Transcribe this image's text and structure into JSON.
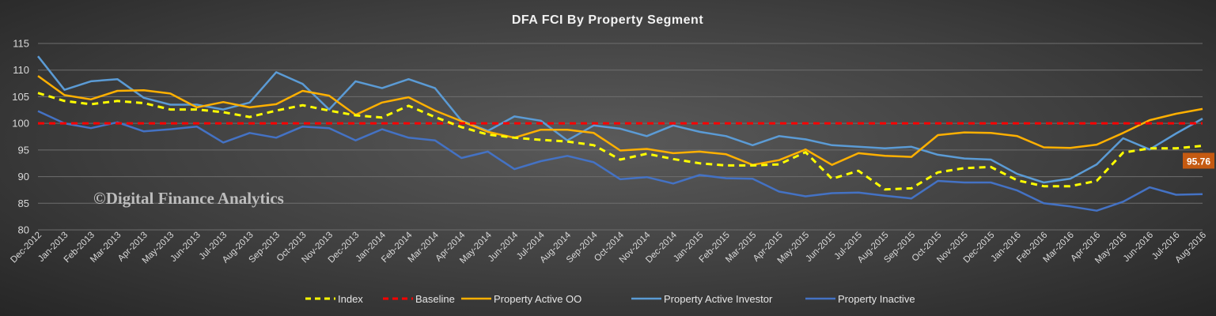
{
  "chart_data": {
    "type": "line",
    "title": "DFA FCI By Property  Segment",
    "watermark": "©Digital Finance Analytics",
    "ylim": [
      80,
      115
    ],
    "yticks": [
      "80",
      "85",
      "90",
      "95",
      "100",
      "105",
      "110",
      "115"
    ],
    "grid": true,
    "legend_position": "bottom",
    "categories": [
      "Dec-2012",
      "Jan-2013",
      "Feb-2013",
      "Mar-2013",
      "Apr-2013",
      "May-2013",
      "Jun-2013",
      "Jul-2013",
      "Aug-2013",
      "Sep-2013",
      "Oct-2013",
      "Nov-2013",
      "Dec-2013",
      "Jan-2014",
      "Feb-2014",
      "Mar-2014",
      "Apr-2014",
      "May-2014",
      "Jun-2014",
      "Jul-2014",
      "Aug-2014",
      "Sep-2014",
      "Oct-2014",
      "Nov-2014",
      "Dec-2014",
      "Jan-2015",
      "Feb-2015",
      "Mar-2015",
      "Apr-2015",
      "May-2015",
      "Jun-2015",
      "Jul-2015",
      "Aug-2015",
      "Sep-2015",
      "Oct-2015",
      "Nov-2015",
      "Dec-2015",
      "Jan-2016",
      "Feb-2016",
      "Mar-2016",
      "Apr-2016",
      "May-2016",
      "Jun-2016",
      "Jul-2016",
      "Aug-2016"
    ],
    "series": [
      {
        "name": "Index",
        "color": "#ffff00",
        "dash": "dashed",
        "values": [
          105.7,
          104.2,
          103.6,
          104.2,
          103.8,
          102.6,
          102.6,
          102.1,
          101.2,
          102.4,
          103.4,
          102.4,
          101.5,
          101.1,
          103.3,
          101.2,
          99.3,
          97.9,
          97.3,
          96.9,
          96.6,
          95.9,
          93.2,
          94.3,
          93.3,
          92.5,
          92.1,
          92.1,
          92.3,
          94.6,
          89.6,
          91.1,
          87.6,
          87.8,
          90.8,
          91.6,
          91.8,
          89.3,
          88.2,
          88.2,
          89.2,
          94.5,
          95.3,
          95.3,
          95.8
        ]
      },
      {
        "name": "Baseline",
        "color": "#ff0000",
        "dash": "dashed",
        "values": [
          100,
          100,
          100,
          100,
          100,
          100,
          100,
          100,
          100,
          100,
          100,
          100,
          100,
          100,
          100,
          100,
          100,
          100,
          100,
          100,
          100,
          100,
          100,
          100,
          100,
          100,
          100,
          100,
          100,
          100,
          100,
          100,
          100,
          100,
          100,
          100,
          100,
          100,
          100,
          100,
          100,
          100,
          100,
          100,
          100
        ]
      },
      {
        "name": "Property Active OO",
        "color": "#ffb000",
        "dash": "solid",
        "values": [
          108.9,
          105.3,
          104.5,
          106.1,
          106.2,
          105.6,
          103.0,
          104.0,
          103.0,
          103.6,
          106.1,
          105.2,
          101.6,
          103.9,
          104.9,
          102.4,
          100.4,
          98.4,
          97.3,
          98.8,
          98.8,
          98.2,
          94.9,
          95.2,
          94.4,
          94.7,
          94.2,
          92.2,
          93.1,
          95.1,
          92.2,
          94.4,
          93.9,
          93.7,
          97.8,
          98.3,
          98.2,
          97.6,
          95.5,
          95.4,
          96.0,
          98.2,
          100.6,
          101.8,
          102.7
        ]
      },
      {
        "name": "Property Active Investor",
        "color": "#5b9bd5",
        "dash": "solid",
        "values": [
          112.6,
          106.3,
          107.9,
          108.3,
          104.8,
          103.5,
          103.5,
          102.6,
          103.9,
          109.6,
          107.4,
          102.6,
          107.9,
          106.6,
          108.3,
          106.6,
          100.5,
          98.6,
          101.3,
          100.5,
          96.8,
          99.6,
          99.0,
          97.6,
          99.6,
          98.4,
          97.6,
          95.9,
          97.6,
          97.0,
          95.9,
          95.6,
          95.3,
          95.6,
          94.1,
          93.4,
          93.2,
          90.5,
          88.9,
          89.6,
          92.3,
          97.2,
          95.1,
          98.1,
          100.9
        ]
      },
      {
        "name": "Property Inactive",
        "color": "#4472c4",
        "dash": "solid",
        "values": [
          102.3,
          100.0,
          99.1,
          100.2,
          98.5,
          98.9,
          99.4,
          96.4,
          98.2,
          97.3,
          99.4,
          99.1,
          96.8,
          98.9,
          97.3,
          96.8,
          93.5,
          94.7,
          91.4,
          92.9,
          93.9,
          92.7,
          89.5,
          89.9,
          88.7,
          90.3,
          89.7,
          89.6,
          87.2,
          86.3,
          86.9,
          87.0,
          86.4,
          85.9,
          89.2,
          88.9,
          88.9,
          87.4,
          85.0,
          84.4,
          83.6,
          85.3,
          88.0,
          86.6,
          86.7
        ]
      }
    ],
    "callout": {
      "series": "Index",
      "text": "95.76",
      "color": "#c55a11"
    }
  }
}
